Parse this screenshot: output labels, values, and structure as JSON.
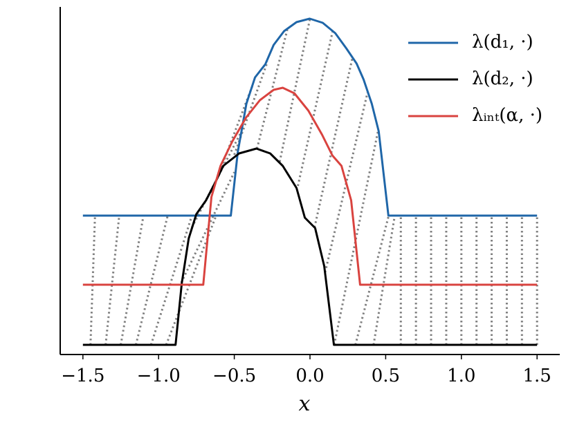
{
  "chart_data": {
    "type": "line",
    "xlabel": "x",
    "xlim": [
      -1.65,
      1.65
    ],
    "ylim": [
      -0.14,
      4.89
    ],
    "xticks": [
      {
        "value": -1.5,
        "label": "−1.5"
      },
      {
        "value": -1.0,
        "label": "−1.0"
      },
      {
        "value": -0.5,
        "label": "−0.5"
      },
      {
        "value": 0.0,
        "label": "0.0"
      },
      0.5,
      {
        "value": 1.0,
        "label": "1.0"
      },
      1.5
    ],
    "legend": "upper right",
    "series": [
      {
        "name": "λ(d₁, ·)",
        "color": "#1f66a8",
        "x": [
          -1.5,
          -0.523,
          -0.477,
          -0.42,
          -0.363,
          -0.295,
          -0.24,
          -0.171,
          -0.089,
          -0.002,
          0.084,
          0.167,
          0.24,
          0.308,
          0.354,
          0.408,
          0.454,
          0.518,
          1.5
        ],
        "values": [
          1.87,
          1.87,
          2.79,
          3.49,
          3.87,
          4.06,
          4.34,
          4.54,
          4.67,
          4.72,
          4.66,
          4.51,
          4.29,
          4.07,
          3.84,
          3.49,
          3.09,
          1.87,
          1.87
        ]
      },
      {
        "name": "λ(d₂, ·)",
        "color": "#000000",
        "x": [
          -1.5,
          -0.888,
          -0.847,
          -0.801,
          -0.751,
          -0.687,
          -0.628,
          -0.573,
          -0.468,
          -0.354,
          -0.263,
          -0.18,
          -0.089,
          -0.034,
          0.034,
          0.094,
          0.158,
          1.5
        ],
        "values": [
          0,
          0,
          0.89,
          1.54,
          1.89,
          2.09,
          2.34,
          2.59,
          2.77,
          2.84,
          2.77,
          2.59,
          2.27,
          1.84,
          1.69,
          1.14,
          0,
          0
        ]
      },
      {
        "name": "λᵢₙₜ(α, ·)",
        "color": "#d9433f",
        "x": [
          -1.5,
          -0.705,
          -0.651,
          -0.591,
          -0.514,
          -0.422,
          -0.331,
          -0.24,
          -0.18,
          -0.103,
          -0.011,
          0.08,
          0.148,
          0.208,
          0.272,
          0.331,
          1.5
        ],
        "values": [
          0.87,
          0.87,
          2.14,
          2.59,
          2.94,
          3.29,
          3.54,
          3.69,
          3.72,
          3.64,
          3.39,
          3.04,
          2.74,
          2.59,
          2.09,
          0.87,
          0.87
        ]
      }
    ],
    "transport_color": "#808080",
    "transport": [
      {
        "x": [
          -1.45,
          -1.42
        ],
        "y": [
          0,
          1.87
        ]
      },
      {
        "x": [
          -1.35,
          -1.26
        ],
        "y": [
          0,
          1.87
        ]
      },
      {
        "x": [
          -1.25,
          -1.1
        ],
        "y": [
          0,
          1.87
        ]
      },
      {
        "x": [
          -1.15,
          -0.94
        ],
        "y": [
          0,
          1.87
        ]
      },
      {
        "x": [
          -1.05,
          -0.78
        ],
        "y": [
          0,
          1.87
        ]
      },
      {
        "x": [
          -0.95,
          -0.62
        ],
        "y": [
          0,
          1.87
        ]
      },
      {
        "x": [
          -0.85,
          -0.5
        ],
        "y": [
          0.9,
          2.5
        ]
      },
      {
        "x": [
          -0.78,
          -0.45
        ],
        "y": [
          1.7,
          3.1
        ]
      },
      {
        "x": [
          -0.65,
          -0.38
        ],
        "y": [
          2.2,
          3.75
        ]
      },
      {
        "x": [
          -0.5,
          -0.28
        ],
        "y": [
          2.75,
          4.1
        ]
      },
      {
        "x": [
          -0.35,
          -0.15
        ],
        "y": [
          2.84,
          4.56
        ]
      },
      {
        "x": [
          -0.2,
          0.0
        ],
        "y": [
          2.65,
          4.72
        ]
      },
      {
        "x": [
          -0.08,
          0.15
        ],
        "y": [
          2.3,
          4.54
        ]
      },
      {
        "x": [
          0.03,
          0.28
        ],
        "y": [
          1.7,
          4.15
        ]
      },
      {
        "x": [
          0.1,
          0.38
        ],
        "y": [
          1.05,
          3.65
        ]
      },
      {
        "x": [
          0.16,
          0.45
        ],
        "y": [
          0,
          3.1
        ]
      },
      {
        "x": [
          0.3,
          0.52
        ],
        "y": [
          0,
          1.87
        ]
      },
      {
        "x": [
          0.42,
          0.56
        ],
        "y": [
          0,
          1.87
        ]
      },
      {
        "x": [
          0.6,
          0.6
        ],
        "y": [
          0,
          1.87
        ]
      },
      {
        "x": [
          0.7,
          0.7
        ],
        "y": [
          0,
          1.87
        ]
      },
      {
        "x": [
          0.8,
          0.8
        ],
        "y": [
          0,
          1.87
        ]
      },
      {
        "x": [
          0.9,
          0.9
        ],
        "y": [
          0,
          1.87
        ]
      },
      {
        "x": [
          1.0,
          1.0
        ],
        "y": [
          0,
          1.87
        ]
      },
      {
        "x": [
          1.1,
          1.1
        ],
        "y": [
          0,
          1.87
        ]
      },
      {
        "x": [
          1.2,
          1.2
        ],
        "y": [
          0,
          1.87
        ]
      },
      {
        "x": [
          1.3,
          1.3
        ],
        "y": [
          0,
          1.87
        ]
      },
      {
        "x": [
          1.4,
          1.4
        ],
        "y": [
          0,
          1.87
        ]
      },
      {
        "x": [
          1.5,
          1.5
        ],
        "y": [
          0,
          1.87
        ]
      }
    ]
  }
}
